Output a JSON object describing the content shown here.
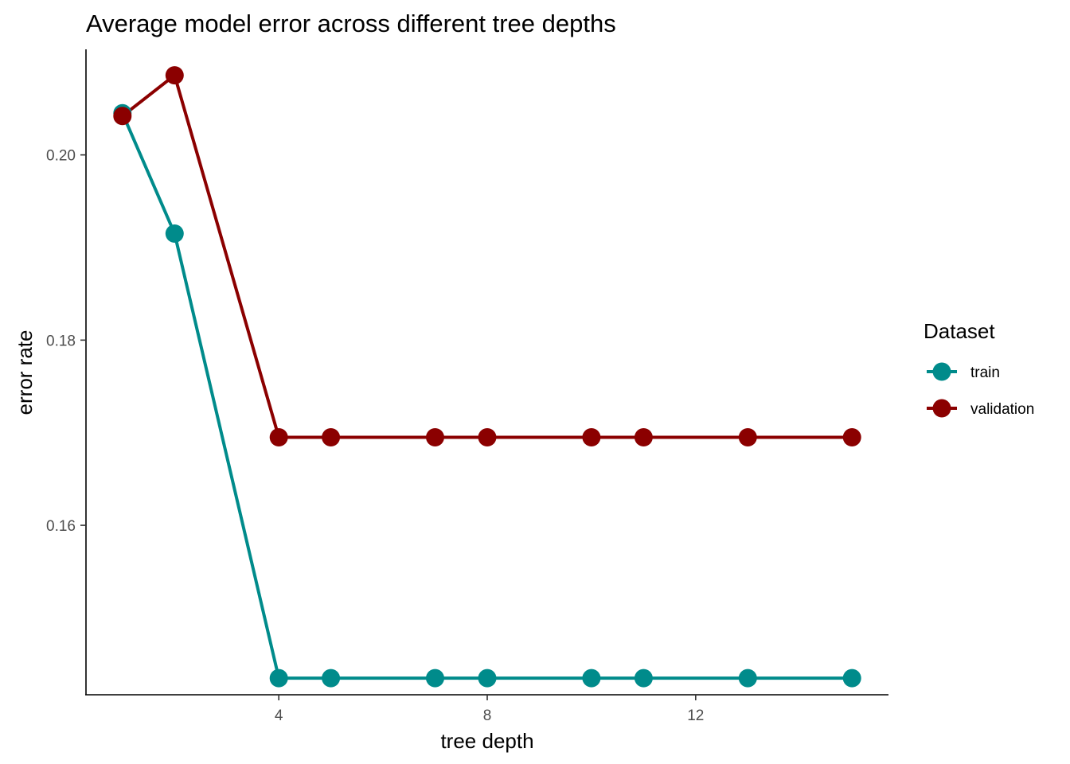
{
  "chart_data": {
    "type": "line",
    "title": "Average model error across different tree depths",
    "xlabel": "tree depth",
    "ylabel": "error rate",
    "xlim": [
      0.3,
      15.7
    ],
    "ylim": [
      0.1417,
      0.2114
    ],
    "x_ticks": [
      4,
      8,
      12
    ],
    "x_tick_labels": [
      "4",
      "8",
      "12"
    ],
    "y_ticks": [
      0.16,
      0.18,
      0.2
    ],
    "y_tick_labels": [
      "0.16",
      "0.18",
      "0.20"
    ],
    "grid": false,
    "legend": {
      "title": "Dataset",
      "position": "right"
    },
    "x": [
      1,
      2,
      4,
      5,
      7,
      8,
      10,
      11,
      13,
      15
    ],
    "series": [
      {
        "name": "train",
        "color": "#008B8B",
        "values": [
          0.2045,
          0.1915,
          0.1435,
          0.1435,
          0.1435,
          0.1435,
          0.1435,
          0.1435,
          0.1435,
          0.1435
        ]
      },
      {
        "name": "validation",
        "color": "#8B0000",
        "values": [
          0.2042,
          0.2086,
          0.1695,
          0.1695,
          0.1695,
          0.1695,
          0.1695,
          0.1695,
          0.1695,
          0.1695
        ]
      }
    ]
  }
}
